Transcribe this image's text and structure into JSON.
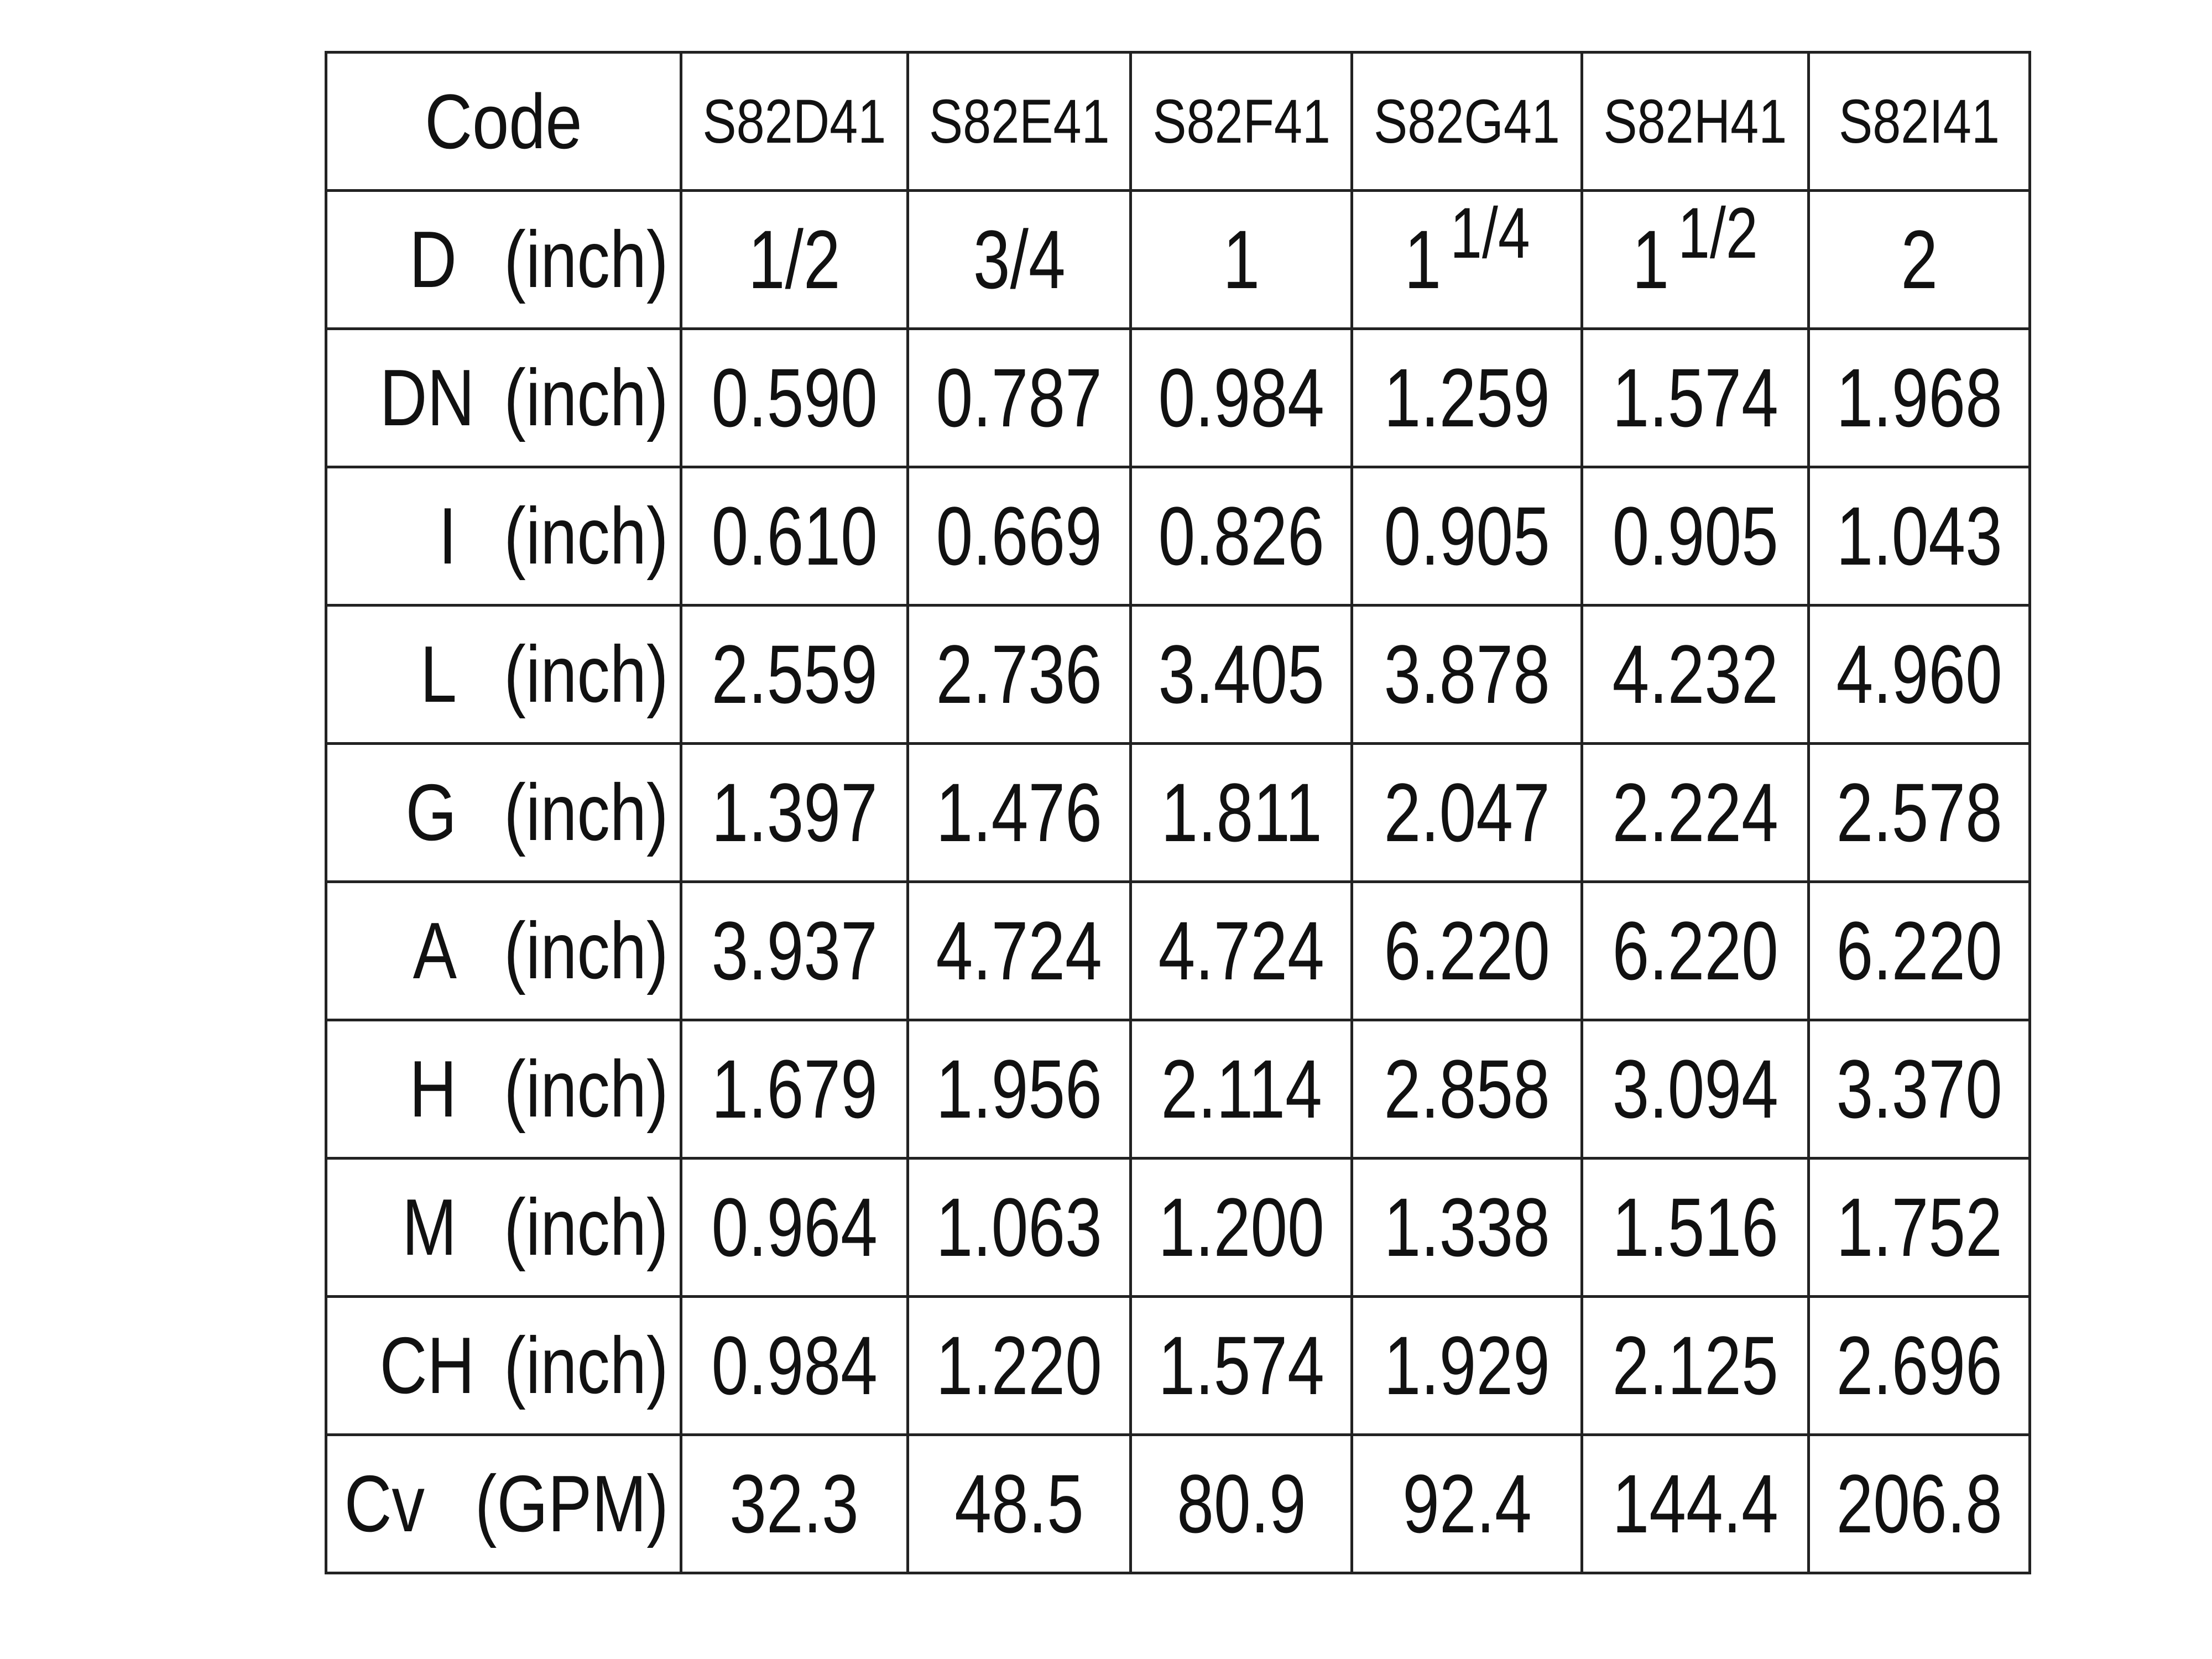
{
  "table": {
    "header": {
      "label": "Code",
      "codes": [
        "S82D41",
        "S82E41",
        "S82F41",
        "S82G41",
        "S82H41",
        "S82I41"
      ]
    },
    "rows": [
      {
        "label": {
          "name": "D",
          "unit": "(inch)"
        },
        "cells": [
          "1/2",
          "3/4",
          "1",
          {
            "whole": "1",
            "fraction": "1/4"
          },
          {
            "whole": "1",
            "fraction": "1/2"
          },
          "2"
        ]
      },
      {
        "label": {
          "name": "DN",
          "unit": "(inch)"
        },
        "cells": [
          "0.590",
          "0.787",
          "0.984",
          "1.259",
          "1.574",
          "1.968"
        ]
      },
      {
        "label": {
          "name": "I",
          "unit": "(inch)"
        },
        "cells": [
          "0.610",
          "0.669",
          "0.826",
          "0.905",
          "0.905",
          "1.043"
        ]
      },
      {
        "label": {
          "name": "L",
          "unit": "(inch)"
        },
        "cells": [
          "2.559",
          "2.736",
          "3.405",
          "3.878",
          "4.232",
          "4.960"
        ]
      },
      {
        "label": {
          "name": "G",
          "unit": "(inch)"
        },
        "cells": [
          "1.397",
          "1.476",
          "1.811",
          "2.047",
          "2.224",
          "2.578"
        ]
      },
      {
        "label": {
          "name": "A",
          "unit": "(inch)"
        },
        "cells": [
          "3.937",
          "4.724",
          "4.724",
          "6.220",
          "6.220",
          "6.220"
        ]
      },
      {
        "label": {
          "name": "H",
          "unit": "(inch)"
        },
        "cells": [
          "1.679",
          "1.956",
          "2.114",
          "2.858",
          "3.094",
          "3.370"
        ]
      },
      {
        "label": {
          "name": "M",
          "unit": "(inch)"
        },
        "cells": [
          "0.964",
          "1.063",
          "1.200",
          "1.338",
          "1.516",
          "1.752"
        ]
      },
      {
        "label": {
          "name": "CH",
          "unit": "(inch)"
        },
        "cells": [
          "0.984",
          "1.220",
          "1.574",
          "1.929",
          "2.125",
          "2.696"
        ]
      },
      {
        "label": {
          "name": "Cv",
          "unit": "(GPM)"
        },
        "cells": [
          "32.3",
          "48.5",
          "80.9",
          "92.4",
          "144.4",
          "206.8"
        ]
      }
    ]
  }
}
